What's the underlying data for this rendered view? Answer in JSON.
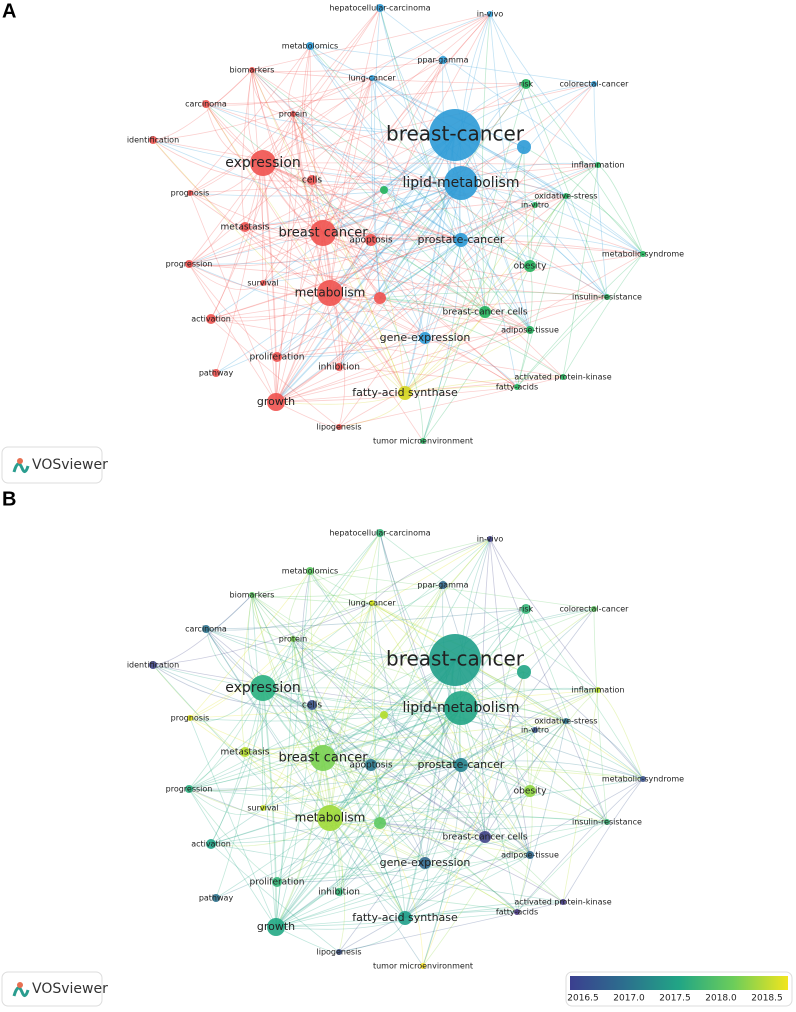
{
  "panels": [
    {
      "letter": "A",
      "logo": "VOSviewer"
    },
    {
      "letter": "B",
      "logo": "VOSviewer"
    }
  ],
  "nodes": [
    {
      "label": "breast-cancer"
    },
    {
      "label": "lipid-metabolism"
    },
    {
      "label": "expression"
    },
    {
      "label": "breast cancer"
    },
    {
      "label": "metabolism"
    },
    {
      "label": "prostate-cancer"
    },
    {
      "label": "fatty-acid synthase"
    },
    {
      "label": "growth"
    },
    {
      "label": "gene-expression"
    },
    {
      "label": "breast-cancer cells"
    },
    {
      "label": "obesity"
    },
    {
      "label": "apoptosis"
    },
    {
      "label": "cells"
    },
    {
      "label": "metastasis"
    },
    {
      "label": "proliferation"
    },
    {
      "label": "inhibition"
    },
    {
      "label": "identification"
    },
    {
      "label": "prognosis"
    },
    {
      "label": "progression"
    },
    {
      "label": "survival"
    },
    {
      "label": "activation"
    },
    {
      "label": "pathway"
    },
    {
      "label": "lipogenesis"
    },
    {
      "label": "carcinoma"
    },
    {
      "label": "protein"
    },
    {
      "label": "biomarkers"
    },
    {
      "label": "metabolomics"
    },
    {
      "label": "hepatocellular-carcinoma"
    },
    {
      "label": "in-vivo"
    },
    {
      "label": "lung-cancer"
    },
    {
      "label": "ppar-gamma"
    },
    {
      "label": "risk"
    },
    {
      "label": "colorectal-cancer"
    },
    {
      "label": "inflammation"
    },
    {
      "label": "in-vitro"
    },
    {
      "label": "oxidative-stress"
    },
    {
      "label": "metabolic-syndrome"
    },
    {
      "label": "insulin-resistance"
    },
    {
      "label": "adipose-tissue"
    },
    {
      "label": "activated protein-kinase"
    },
    {
      "label": "fatty-acids"
    },
    {
      "label": "tumor microenvironment"
    }
  ],
  "colorbar": {
    "ticks": [
      "2016.5",
      "2017.0",
      "2017.5",
      "2018.0",
      "2018.5"
    ]
  }
}
